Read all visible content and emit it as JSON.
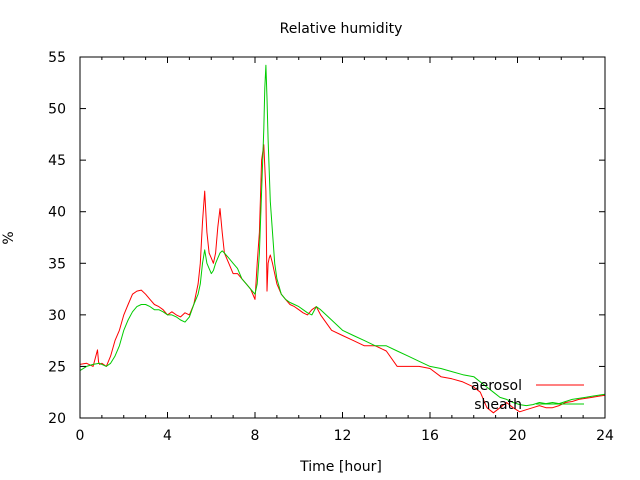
{
  "chart_data": {
    "type": "line",
    "title": "Relative humidity",
    "xlabel": "Time [hour]",
    "ylabel": "%",
    "xlim": [
      0,
      24
    ],
    "ylim": [
      20,
      55
    ],
    "xticks": [
      0,
      4,
      8,
      12,
      16,
      20,
      24
    ],
    "yticks": [
      20,
      25,
      30,
      35,
      40,
      45,
      50,
      55
    ],
    "grid": false,
    "legend_position": "bottom-right",
    "series": [
      {
        "name": "aerosol",
        "color": "#ff0000",
        "x": [
          0,
          0.3,
          0.6,
          0.8,
          0.85,
          0.9,
          1.0,
          1.2,
          1.4,
          1.6,
          1.8,
          2.0,
          2.2,
          2.4,
          2.6,
          2.8,
          3.0,
          3.2,
          3.4,
          3.6,
          3.8,
          4.0,
          4.2,
          4.4,
          4.6,
          4.8,
          5.0,
          5.2,
          5.4,
          5.5,
          5.6,
          5.7,
          5.8,
          5.9,
          6.0,
          6.1,
          6.2,
          6.3,
          6.4,
          6.5,
          6.6,
          6.8,
          7.0,
          7.2,
          7.4,
          7.6,
          7.8,
          8.0,
          8.1,
          8.2,
          8.3,
          8.4,
          8.5,
          8.55,
          8.6,
          8.65,
          8.7,
          8.8,
          8.9,
          9.0,
          9.2,
          9.4,
          9.6,
          9.8,
          10.0,
          10.2,
          10.4,
          10.6,
          10.8,
          11.0,
          11.5,
          12.0,
          12.5,
          13.0,
          13.5,
          14.0,
          14.5,
          15.0,
          15.5,
          16.0,
          16.5,
          17.0,
          17.5,
          18.0,
          18.3,
          18.6,
          18.9,
          19.2,
          19.5,
          19.8,
          20.1,
          20.4,
          20.7,
          21.0,
          21.3,
          21.6,
          21.9,
          22.2,
          22.5,
          22.8,
          23.1,
          23.4,
          23.7,
          24.0
        ],
        "y": [
          25.2,
          25.3,
          25.0,
          26.6,
          25.4,
          25.2,
          25.3,
          25.0,
          26.0,
          27.5,
          28.5,
          30.0,
          31.0,
          32.0,
          32.3,
          32.4,
          32.0,
          31.5,
          31.0,
          30.8,
          30.5,
          30.0,
          30.3,
          30.0,
          29.8,
          30.2,
          30.0,
          31.0,
          33.0,
          35.0,
          39.0,
          42.0,
          38.0,
          36.0,
          35.5,
          35.0,
          36.0,
          38.5,
          40.3,
          38.0,
          36.0,
          35.0,
          34.0,
          34.0,
          33.5,
          33.0,
          32.5,
          31.5,
          35.0,
          38.0,
          45.0,
          46.5,
          42.0,
          32.3,
          35.0,
          35.5,
          35.8,
          35.0,
          34.0,
          33.0,
          32.0,
          31.5,
          31.0,
          30.8,
          30.5,
          30.2,
          30.0,
          30.5,
          30.8,
          30.0,
          28.5,
          28.0,
          27.5,
          27.0,
          27.0,
          26.5,
          25.0,
          25.0,
          25.0,
          24.8,
          24.0,
          23.8,
          23.5,
          23.0,
          22.5,
          21.0,
          20.5,
          21.0,
          21.5,
          21.0,
          20.6,
          20.8,
          21.0,
          21.2,
          21.0,
          21.0,
          21.2,
          21.5,
          21.6,
          21.8,
          21.9,
          22.0,
          22.1,
          22.2
        ]
      },
      {
        "name": "sheath",
        "color": "#00cc00",
        "x": [
          0,
          0.3,
          0.6,
          0.9,
          1.0,
          1.2,
          1.4,
          1.6,
          1.8,
          2.0,
          2.2,
          2.4,
          2.6,
          2.8,
          3.0,
          3.2,
          3.4,
          3.6,
          3.8,
          4.0,
          4.2,
          4.4,
          4.6,
          4.8,
          5.0,
          5.2,
          5.4,
          5.5,
          5.6,
          5.7,
          5.8,
          5.9,
          6.0,
          6.1,
          6.2,
          6.3,
          6.4,
          6.5,
          6.6,
          6.8,
          7.0,
          7.2,
          7.4,
          7.6,
          7.8,
          8.0,
          8.1,
          8.2,
          8.3,
          8.4,
          8.45,
          8.5,
          8.55,
          8.6,
          8.65,
          8.7,
          8.8,
          8.9,
          9.0,
          9.2,
          9.4,
          9.6,
          9.8,
          10.0,
          10.2,
          10.4,
          10.6,
          10.8,
          11.0,
          11.5,
          12.0,
          12.5,
          13.0,
          13.5,
          14.0,
          14.5,
          15.0,
          15.5,
          16.0,
          16.5,
          17.0,
          17.5,
          18.0,
          18.3,
          18.6,
          18.9,
          19.2,
          19.5,
          19.8,
          20.1,
          20.4,
          20.7,
          21.0,
          21.3,
          21.6,
          21.9,
          22.2,
          22.5,
          22.8,
          23.1,
          23.4,
          23.7,
          24.0
        ],
        "y": [
          24.6,
          25.0,
          25.2,
          25.3,
          25.2,
          25.0,
          25.3,
          26.0,
          27.0,
          28.5,
          29.5,
          30.3,
          30.8,
          31.0,
          31.0,
          30.8,
          30.5,
          30.5,
          30.3,
          30.0,
          30.0,
          29.8,
          29.5,
          29.3,
          29.8,
          31.0,
          32.0,
          33.0,
          35.0,
          36.3,
          35.0,
          34.5,
          34.0,
          34.3,
          35.0,
          35.5,
          36.0,
          36.2,
          36.0,
          35.5,
          35.0,
          34.5,
          33.5,
          33.0,
          32.5,
          32.0,
          33.0,
          36.0,
          42.0,
          48.0,
          52.0,
          54.2,
          51.0,
          47.0,
          44.0,
          41.0,
          38.0,
          35.0,
          33.5,
          32.0,
          31.5,
          31.2,
          31.0,
          30.8,
          30.5,
          30.2,
          30.0,
          30.8,
          30.5,
          29.5,
          28.5,
          28.0,
          27.5,
          27.0,
          27.0,
          26.5,
          26.0,
          25.5,
          25.0,
          24.8,
          24.5,
          24.2,
          24.0,
          23.5,
          23.0,
          22.5,
          22.0,
          21.8,
          21.5,
          21.3,
          21.2,
          21.3,
          21.5,
          21.4,
          21.5,
          21.4,
          21.6,
          21.8,
          21.9,
          22.0,
          22.1,
          22.2,
          22.3
        ]
      }
    ]
  }
}
